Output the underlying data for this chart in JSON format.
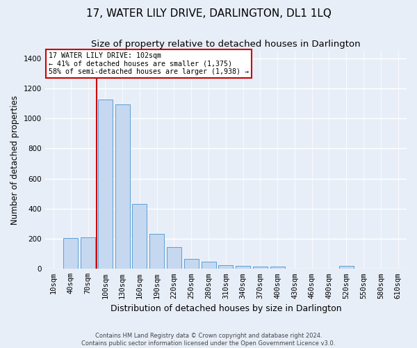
{
  "title": "17, WATER LILY DRIVE, DARLINGTON, DL1 1LQ",
  "subtitle": "Size of property relative to detached houses in Darlington",
  "xlabel": "Distribution of detached houses by size in Darlington",
  "ylabel": "Number of detached properties",
  "footer_line1": "Contains HM Land Registry data © Crown copyright and database right 2024.",
  "footer_line2": "Contains public sector information licensed under the Open Government Licence v3.0.",
  "categories": [
    "10sqm",
    "40sqm",
    "70sqm",
    "100sqm",
    "130sqm",
    "160sqm",
    "190sqm",
    "220sqm",
    "250sqm",
    "280sqm",
    "310sqm",
    "340sqm",
    "370sqm",
    "400sqm",
    "430sqm",
    "460sqm",
    "490sqm",
    "520sqm",
    "550sqm",
    "580sqm",
    "610sqm"
  ],
  "values": [
    0,
    207,
    210,
    1125,
    1095,
    430,
    233,
    143,
    65,
    47,
    25,
    18,
    14,
    14,
    0,
    0,
    0,
    22,
    0,
    0,
    0
  ],
  "bar_color": "#c5d8f0",
  "bar_edge_color": "#5a9fd4",
  "annotation_line1": "17 WATER LILY DRIVE: 102sqm",
  "annotation_line2": "← 41% of detached houses are smaller (1,375)",
  "annotation_line3": "58% of semi-detached houses are larger (1,938) →",
  "vline_color": "#cc0000",
  "vline_x": 2.5,
  "annotation_box_color": "#ffffff",
  "annotation_box_edge": "#cc0000",
  "ylim": [
    0,
    1450
  ],
  "yticks": [
    0,
    200,
    400,
    600,
    800,
    1000,
    1200,
    1400
  ],
  "bg_color": "#e8eef8",
  "grid_color": "#ffffff",
  "title_fontsize": 11,
  "subtitle_fontsize": 9.5,
  "xlabel_fontsize": 9,
  "ylabel_fontsize": 8.5,
  "tick_fontsize": 7.5
}
